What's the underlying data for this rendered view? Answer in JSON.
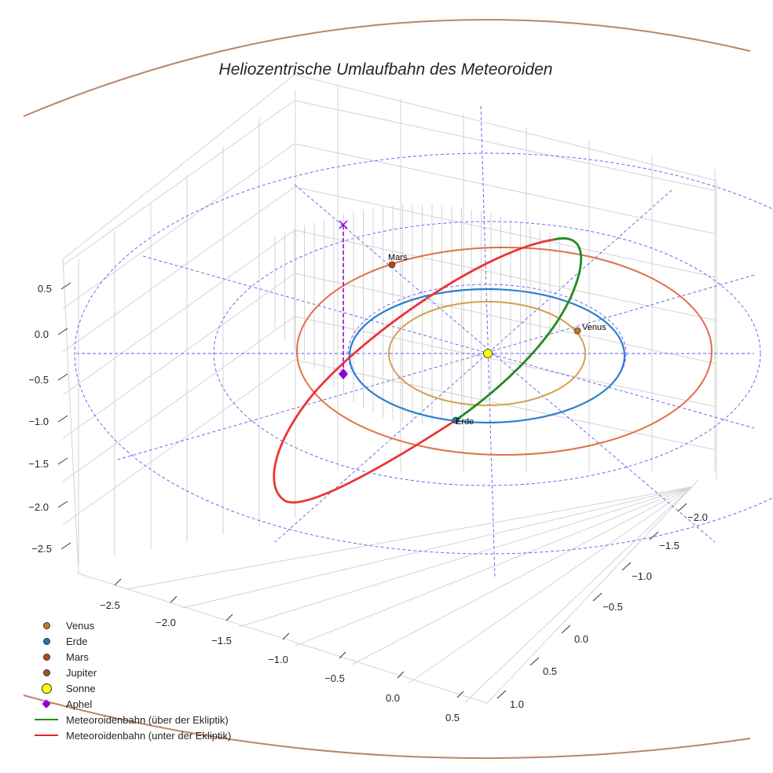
{
  "chart_data": {
    "type": "line3d",
    "title": "Heliozentrische Umlaufbahn des Meteoroiden",
    "x_ticks": [
      "−2.5",
      "−2.0",
      "−1.5",
      "−1.0",
      "−0.5",
      "0.0",
      "0.5"
    ],
    "y_ticks": [
      "−2.0",
      "−1.5",
      "−1.0",
      "−0.5",
      "0.0",
      "0.5",
      "1.0"
    ],
    "z_ticks": [
      "0.5",
      "0.0",
      "−0.5",
      "−1.0",
      "−1.5",
      "−2.0",
      "−2.5"
    ],
    "xlim": [
      -2.8,
      0.6
    ],
    "ylim": [
      -2.3,
      1.2
    ],
    "zlim": [
      -2.8,
      0.7
    ],
    "planet_labels": {
      "mars": "Mars",
      "venus": "Venus",
      "erde": "Erde"
    },
    "legend": [
      {
        "label": "Venus",
        "kind": "dot",
        "color": "#c8781a"
      },
      {
        "label": "Erde",
        "kind": "dot",
        "color": "#1f77b4"
      },
      {
        "label": "Mars",
        "kind": "dot",
        "color": "#c1440e"
      },
      {
        "label": "Jupiter",
        "kind": "dot",
        "color": "#a0522d"
      },
      {
        "label": "Sonne",
        "kind": "sun",
        "color": "#ffff00"
      },
      {
        "label": "Aphel",
        "kind": "diamond",
        "color": "#9400d3"
      },
      {
        "label": "Meteoroidenbahn (über der Ekliptik)",
        "kind": "line",
        "color": "#228b22"
      },
      {
        "label": "Meteoroidenbahn (unter der Ekliptik)",
        "kind": "line",
        "color": "#ee2222"
      }
    ],
    "legend_position": "bottom-left",
    "colors": {
      "venus_orbit": "#d4a04a",
      "earth_orbit": "#2a7fd0",
      "mars_orbit": "#e07048",
      "jupiter_orbit": "#b8856a",
      "grid": "#d0d0d0",
      "ref": "#5555ee"
    }
  }
}
